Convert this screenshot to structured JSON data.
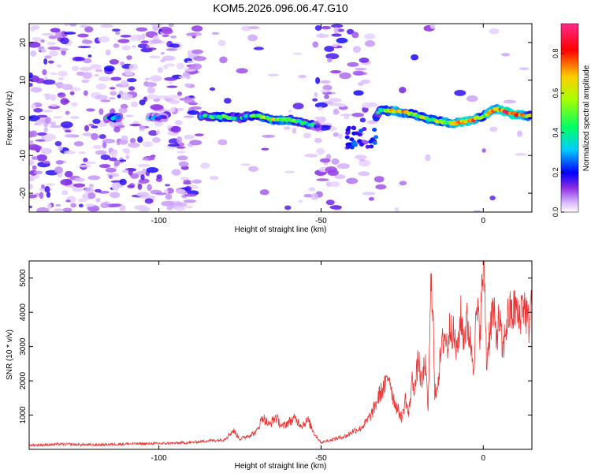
{
  "chart_data": [
    {
      "type": "heatmap",
      "title": "KOM5.2026.096.06.47.G10",
      "xlabel": "Height of straight line (km)",
      "ylabel": "Frequency (Hz)",
      "xlim": [
        -140,
        15
      ],
      "ylim": [
        -25,
        25
      ],
      "xticks": [
        -100,
        -50,
        0
      ],
      "yticks": [
        20,
        10,
        0,
        -10,
        -20
      ],
      "colorbar": {
        "label": "Normalized spectral amplitude",
        "range": [
          0,
          0.95
        ],
        "ticks": [
          0.0,
          0.2,
          0.4,
          0.6,
          0.8
        ]
      },
      "ridge": [
        {
          "x": -114,
          "f": 0.0,
          "amp": 0.3
        },
        {
          "x": -100,
          "f": 0.0,
          "amp": 0.2
        },
        {
          "x": -86,
          "f": 0.5,
          "amp": 0.3
        },
        {
          "x": -80,
          "f": 0.2,
          "amp": 0.5
        },
        {
          "x": -75,
          "f": 0.0,
          "amp": 0.35
        },
        {
          "x": -70,
          "f": 0.8,
          "amp": 0.4
        },
        {
          "x": -65,
          "f": -0.5,
          "amp": 0.55
        },
        {
          "x": -60,
          "f": -0.5,
          "amp": 0.5
        },
        {
          "x": -56,
          "f": -1.2,
          "amp": 0.4
        },
        {
          "x": -52,
          "f": -2.0,
          "amp": 0.3
        },
        {
          "x": -40,
          "f": -4.0,
          "amp": 0.2
        },
        {
          "x": -36,
          "f": -6.0,
          "amp": 0.25
        },
        {
          "x": -32,
          "f": 2.0,
          "amp": 0.35
        },
        {
          "x": -27,
          "f": 1.8,
          "amp": 0.7
        },
        {
          "x": -22,
          "f": 1.0,
          "amp": 0.55
        },
        {
          "x": -16,
          "f": -0.5,
          "amp": 0.5
        },
        {
          "x": -10,
          "f": -1.5,
          "amp": 0.6
        },
        {
          "x": -5,
          "f": -1.0,
          "amp": 0.75
        },
        {
          "x": 0,
          "f": 0.5,
          "amp": 0.55
        },
        {
          "x": 4,
          "f": 2.5,
          "amp": 0.7
        },
        {
          "x": 9,
          "f": 1.0,
          "amp": 0.85
        },
        {
          "x": 14,
          "f": 0.5,
          "amp": 0.5
        }
      ]
    },
    {
      "type": "line",
      "xlabel": "Height of straight line (km)",
      "ylabel": "SNR (10 * v/v)",
      "xlim": [
        -140,
        15
      ],
      "ylim": [
        0,
        5500
      ],
      "xticks": [
        -100,
        -50,
        0
      ],
      "yticks": [
        1000,
        2000,
        3000,
        4000,
        5000
      ],
      "color": "#ee3333",
      "series": [
        {
          "name": "SNR",
          "x": [
            -140,
            -130,
            -120,
            -110,
            -100,
            -95,
            -90,
            -85,
            -80,
            -77,
            -75,
            -72,
            -70,
            -68,
            -66,
            -64,
            -62,
            -60,
            -58,
            -56,
            -54,
            -52,
            -50,
            -48,
            -46,
            -44,
            -42,
            -40,
            -38,
            -36,
            -34,
            -32,
            -30,
            -29,
            -28,
            -27,
            -26,
            -25,
            -24,
            -23,
            -22,
            -21,
            -20,
            -19,
            -18,
            -17,
            -16,
            -15.5,
            -15,
            -14,
            -13,
            -12,
            -11,
            -10,
            -9,
            -8,
            -7,
            -6,
            -5,
            -4,
            -3,
            -2,
            -1,
            0,
            0.5,
            1,
            2,
            3,
            4,
            5,
            6,
            7,
            8,
            9,
            10,
            11,
            12,
            13,
            14,
            15
          ],
          "values": [
            120,
            150,
            130,
            160,
            170,
            180,
            200,
            250,
            280,
            550,
            300,
            420,
            500,
            950,
            700,
            950,
            650,
            800,
            900,
            700,
            850,
            450,
            200,
            250,
            300,
            350,
            400,
            550,
            600,
            800,
            1100,
            1600,
            1900,
            2200,
            1600,
            1300,
            1100,
            900,
            1500,
            1000,
            2000,
            1800,
            2700,
            1800,
            2600,
            1200,
            5200,
            4200,
            1500,
            2000,
            2800,
            3400,
            3000,
            3800,
            3200,
            2800,
            3900,
            3300,
            3700,
            3200,
            2500,
            4000,
            3500,
            5300,
            4800,
            2500,
            3500,
            4100,
            3300,
            3800,
            2800,
            3600,
            4000,
            3900,
            4200,
            3700,
            4300,
            4100,
            3600,
            4500
          ]
        }
      ]
    }
  ]
}
